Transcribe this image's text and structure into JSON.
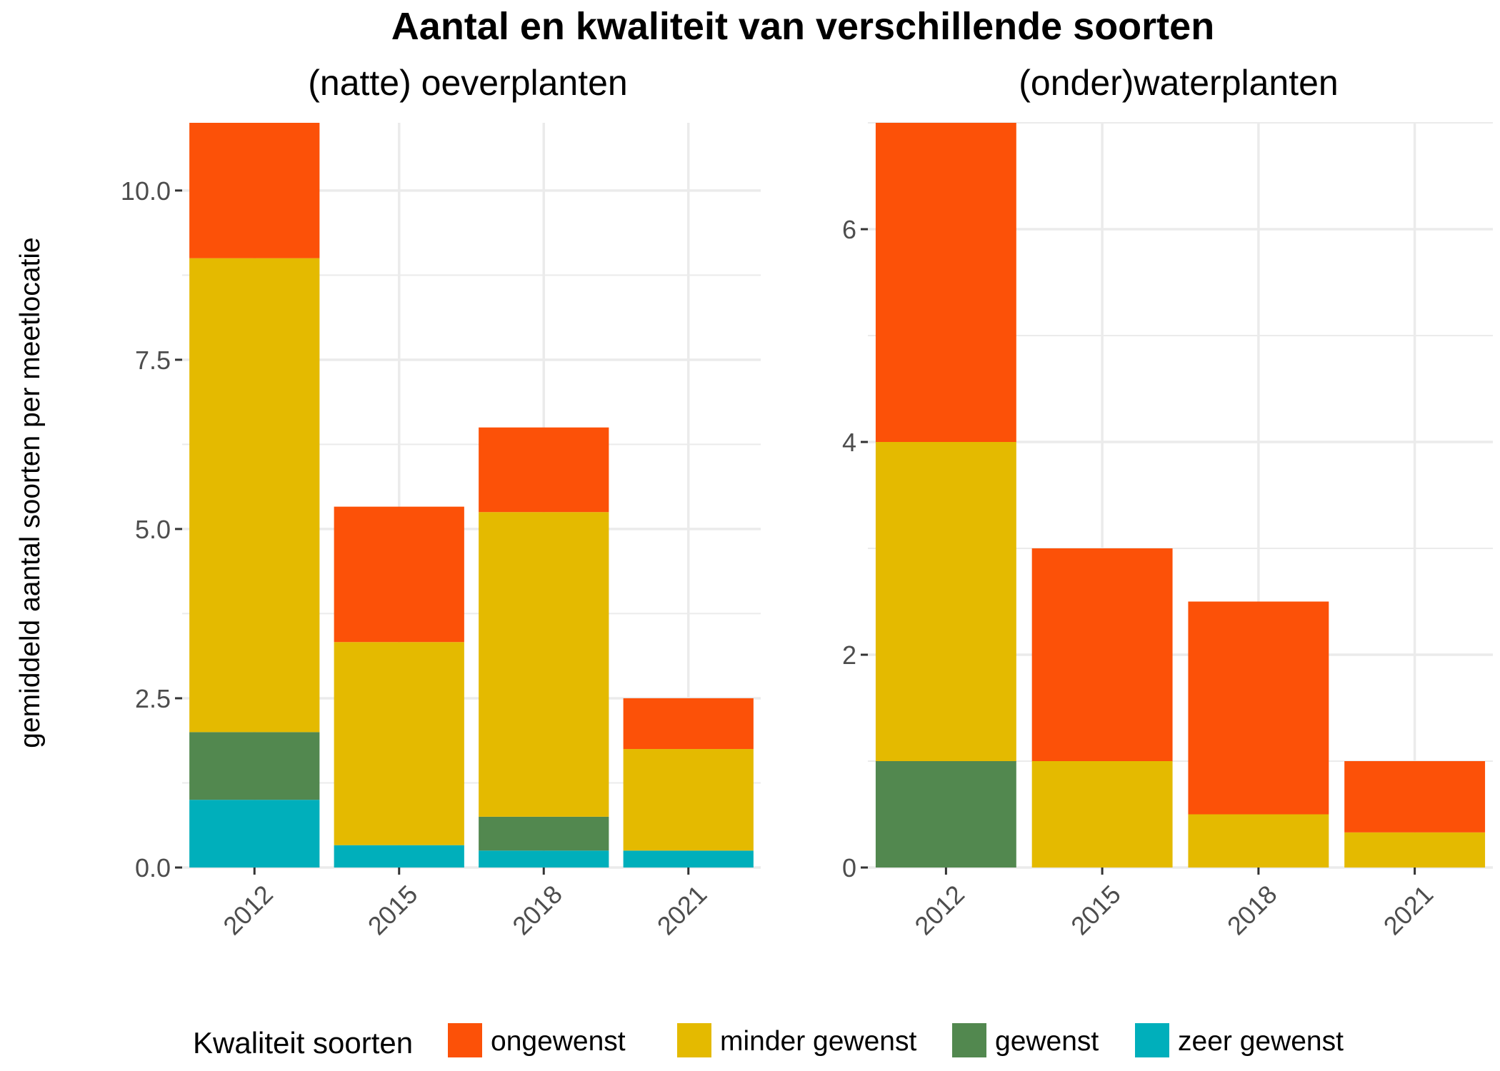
{
  "chart_data": {
    "type": "bar",
    "stacked": true,
    "title": "Aantal en kwaliteit van verschillende soorten",
    "ylabel": "gemiddeld aantal soorten per meetlocatie",
    "legend": {
      "title": "Kwaliteit soorten",
      "position": "bottom",
      "entries": [
        {
          "label": "ongewenst",
          "color": "#FC5108"
        },
        {
          "label": "minder gewenst",
          "color": "#E4BA00"
        },
        {
          "label": "gewenst",
          "color": "#52884F"
        },
        {
          "label": "zeer gewenst",
          "color": "#00AFBB"
        }
      ]
    },
    "facets": [
      {
        "title": "(natte) oeverplanten",
        "categories": [
          "2012",
          "2015",
          "2018",
          "2021"
        ],
        "ylim": [
          0,
          11
        ],
        "yticks": [
          0,
          2.5,
          5,
          7.5,
          10
        ],
        "ytick_labels": [
          "0.0",
          "2.5",
          "5.0",
          "7.5",
          "10.0"
        ],
        "series": [
          {
            "name": "zeer gewenst",
            "values": [
              1.0,
              0.33,
              0.25,
              0.25
            ]
          },
          {
            "name": "gewenst",
            "values": [
              1.0,
              0.0,
              0.5,
              0.0
            ]
          },
          {
            "name": "minder gewenst",
            "values": [
              7.0,
              3.0,
              4.5,
              1.5
            ]
          },
          {
            "name": "ongewenst",
            "values": [
              2.0,
              2.0,
              1.25,
              0.75
            ]
          }
        ]
      },
      {
        "title": "(onder)waterplanten",
        "categories": [
          "2012",
          "2015",
          "2018",
          "2021"
        ],
        "ylim": [
          0,
          7
        ],
        "yticks": [
          0,
          2,
          4,
          6
        ],
        "ytick_labels": [
          "0",
          "2",
          "4",
          "6"
        ],
        "series": [
          {
            "name": "zeer gewenst",
            "values": [
              0,
              0,
              0,
              0
            ]
          },
          {
            "name": "gewenst",
            "values": [
              1.0,
              0,
              0,
              0
            ]
          },
          {
            "name": "minder gewenst",
            "values": [
              3.0,
              1.0,
              0.5,
              0.33
            ]
          },
          {
            "name": "ongewenst",
            "values": [
              3.0,
              2.0,
              2.0,
              0.67
            ]
          }
        ]
      }
    ]
  }
}
